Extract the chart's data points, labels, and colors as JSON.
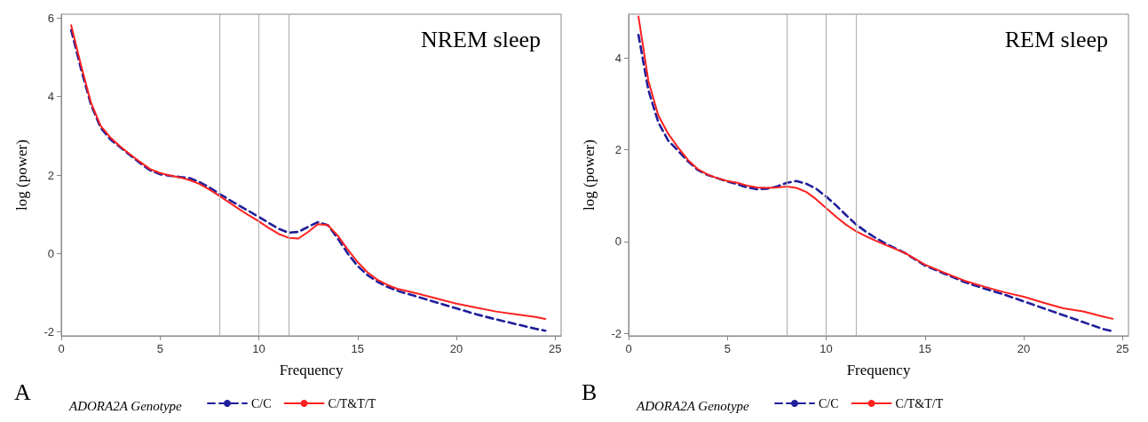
{
  "chart_data": [
    {
      "type": "line",
      "title": "NREM sleep",
      "xlabel": "Frequency",
      "ylabel": "log (power)",
      "legend_title": "ADORA2A Genotype",
      "annotations": [
        "A"
      ],
      "xlim": [
        0,
        25.3
      ],
      "xticks": [
        0,
        5,
        10,
        15,
        20,
        25
      ],
      "ylim": [
        -2.1,
        6.1
      ],
      "yticks": [
        -2,
        0,
        2,
        4,
        6
      ],
      "grid": false,
      "legend": "bottom",
      "marker": "none",
      "x": [
        0.5,
        1,
        1.5,
        2,
        2.5,
        3,
        3.5,
        4,
        4.5,
        5,
        5.5,
        6,
        6.5,
        7,
        7.5,
        8,
        8.5,
        9,
        9.5,
        10,
        10.5,
        11,
        11.5,
        12,
        12.5,
        13,
        13.5,
        14,
        14.5,
        15,
        15.5,
        16,
        16.5,
        17,
        18,
        19,
        20,
        21,
        22,
        23,
        24,
        24.5
      ],
      "series": [
        {
          "name": "C/C",
          "color": "#1f1f9a",
          "line_style": "dashed",
          "values": [
            5.7,
            4.7,
            3.8,
            3.2,
            2.9,
            2.7,
            2.5,
            2.3,
            2.12,
            2.02,
            1.98,
            1.95,
            1.92,
            1.82,
            1.68,
            1.52,
            1.37,
            1.22,
            1.08,
            0.93,
            0.78,
            0.63,
            0.53,
            0.55,
            0.68,
            0.8,
            0.72,
            0.38,
            0.0,
            -0.32,
            -0.55,
            -0.72,
            -0.85,
            -0.95,
            -1.1,
            -1.25,
            -1.4,
            -1.55,
            -1.68,
            -1.8,
            -1.92,
            -1.97
          ]
        },
        {
          "name": "C/T&T/T",
          "color": "#ff2020",
          "line_style": "solid",
          "values": [
            5.82,
            4.8,
            3.85,
            3.25,
            2.95,
            2.72,
            2.52,
            2.33,
            2.15,
            2.05,
            1.99,
            1.94,
            1.87,
            1.77,
            1.63,
            1.47,
            1.3,
            1.13,
            0.97,
            0.82,
            0.65,
            0.5,
            0.4,
            0.38,
            0.55,
            0.75,
            0.72,
            0.45,
            0.1,
            -0.22,
            -0.48,
            -0.67,
            -0.8,
            -0.9,
            -1.02,
            -1.15,
            -1.28,
            -1.38,
            -1.48,
            -1.55,
            -1.62,
            -1.67
          ]
        }
      ],
      "ref_lines": [
        {
          "axis": "x",
          "value": 8,
          "color": "#b4b4b4"
        },
        {
          "axis": "x",
          "value": 10,
          "color": "#b4b4b4"
        },
        {
          "axis": "x",
          "value": 11.5,
          "color": "#b4b4b4"
        }
      ]
    },
    {
      "type": "line",
      "title": "REM sleep",
      "xlabel": "Frequency",
      "ylabel": "log (power)",
      "legend_title": "ADORA2A Genotype",
      "annotations": [
        "B"
      ],
      "xlim": [
        0,
        25.3
      ],
      "xticks": [
        0,
        5,
        10,
        15,
        20,
        25
      ],
      "ylim": [
        -2.05,
        4.95
      ],
      "yticks": [
        -2,
        0,
        2,
        4
      ],
      "grid": false,
      "legend": "bottom",
      "marker": "none",
      "x": [
        0.5,
        1,
        1.5,
        2,
        2.5,
        3,
        3.5,
        4,
        4.5,
        5,
        5.5,
        6,
        6.5,
        7,
        7.5,
        8,
        8.5,
        9,
        9.5,
        10,
        10.5,
        11,
        11.5,
        12,
        12.5,
        13,
        14,
        15,
        16,
        17,
        18,
        19,
        20,
        21,
        22,
        23,
        24,
        24.5
      ],
      "series": [
        {
          "name": "C/C",
          "color": "#1f1f9a",
          "line_style": "dashed",
          "values": [
            4.5,
            3.3,
            2.6,
            2.2,
            1.98,
            1.75,
            1.56,
            1.45,
            1.38,
            1.31,
            1.25,
            1.18,
            1.14,
            1.15,
            1.2,
            1.28,
            1.32,
            1.26,
            1.15,
            0.98,
            0.79,
            0.58,
            0.38,
            0.22,
            0.08,
            -0.04,
            -0.25,
            -0.52,
            -0.7,
            -0.88,
            -1.02,
            -1.15,
            -1.3,
            -1.45,
            -1.6,
            -1.75,
            -1.9,
            -1.95
          ]
        },
        {
          "name": "C/T&T/T",
          "color": "#ff2020",
          "line_style": "solid",
          "values": [
            4.9,
            3.5,
            2.75,
            2.35,
            2.05,
            1.78,
            1.58,
            1.46,
            1.38,
            1.32,
            1.28,
            1.22,
            1.18,
            1.17,
            1.18,
            1.2,
            1.17,
            1.08,
            0.92,
            0.73,
            0.54,
            0.37,
            0.23,
            0.12,
            0.02,
            -0.07,
            -0.25,
            -0.5,
            -0.68,
            -0.85,
            -0.98,
            -1.1,
            -1.2,
            -1.33,
            -1.45,
            -1.52,
            -1.63,
            -1.68
          ]
        }
      ],
      "ref_lines": [
        {
          "axis": "x",
          "value": 8,
          "color": "#b4b4b4"
        },
        {
          "axis": "x",
          "value": 10,
          "color": "#b4b4b4"
        },
        {
          "axis": "x",
          "value": 11.5,
          "color": "#b4b4b4"
        }
      ]
    }
  ]
}
